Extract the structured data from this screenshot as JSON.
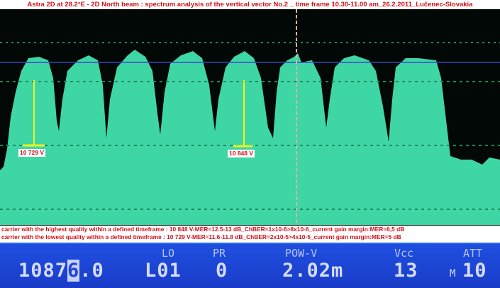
{
  "header": {
    "title": "Astra 2D at 28.2°E - 2D North beam : spectrum analysis of the vertical vector No.2 _ time frame 10.30-11.00 am_26.2.2011_Lučenec-Slovakia"
  },
  "spectrum": {
    "markers": [
      {
        "label": "10 729 V"
      },
      {
        "label": "10 848 V"
      }
    ],
    "colors": {
      "trace": "#3fd6a6",
      "reference_line": "#3c46c8",
      "grid": "#1e8a5a",
      "cursor": "#e8b0a0",
      "marker": "#f0f020"
    }
  },
  "notes": {
    "highest": "carrier with the highest quality within a defined timeframe : 10 848 V-MER=12.5-13  dB_ChBER=1x10-6>8x10-6_current gain margin:MER=6,5 dB",
    "lowest": "carrier with the lowest quality within a defined timeframe : 10 729 V-MER=11.6-11.8  dB_ChBER=2x10-5>4x10-5_current gain margin:MER=5 dB"
  },
  "panel": {
    "labels": {
      "lo": "LO",
      "pr": "PR",
      "pow": "POW-V",
      "vcc": "Vcc",
      "att": "ATT"
    },
    "frequency_prefix": "1087",
    "frequency_cursor_digit": "6",
    "frequency_suffix": ".0",
    "lo": "L01",
    "pr": "0",
    "pow": "2.02m",
    "vcc": "13",
    "att_mode": "M",
    "att": "10"
  }
}
